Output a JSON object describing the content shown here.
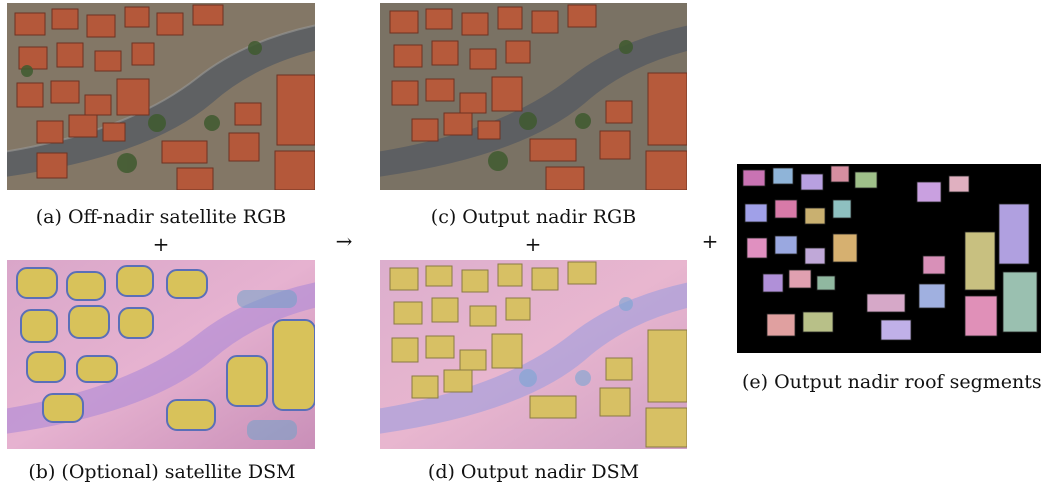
{
  "panels": {
    "a": {
      "caption": "(a) Off-nadir satellite RGB"
    },
    "b": {
      "caption": "(b) (Optional) satellite DSM"
    },
    "c": {
      "caption": "(c) Output nadir RGB"
    },
    "d": {
      "caption": "(d) Output nadir DSM"
    },
    "e": {
      "caption": "(e) Output nadir roof segments"
    }
  },
  "symbols": {
    "plus_ab": "+",
    "plus_cd": "+",
    "arrow": "→",
    "plus_e": "+"
  },
  "colors": {
    "roof": "#b4583a",
    "street": "#6c6e70",
    "vegetation": "#3f5a2f",
    "segments_bg": "#000000"
  }
}
